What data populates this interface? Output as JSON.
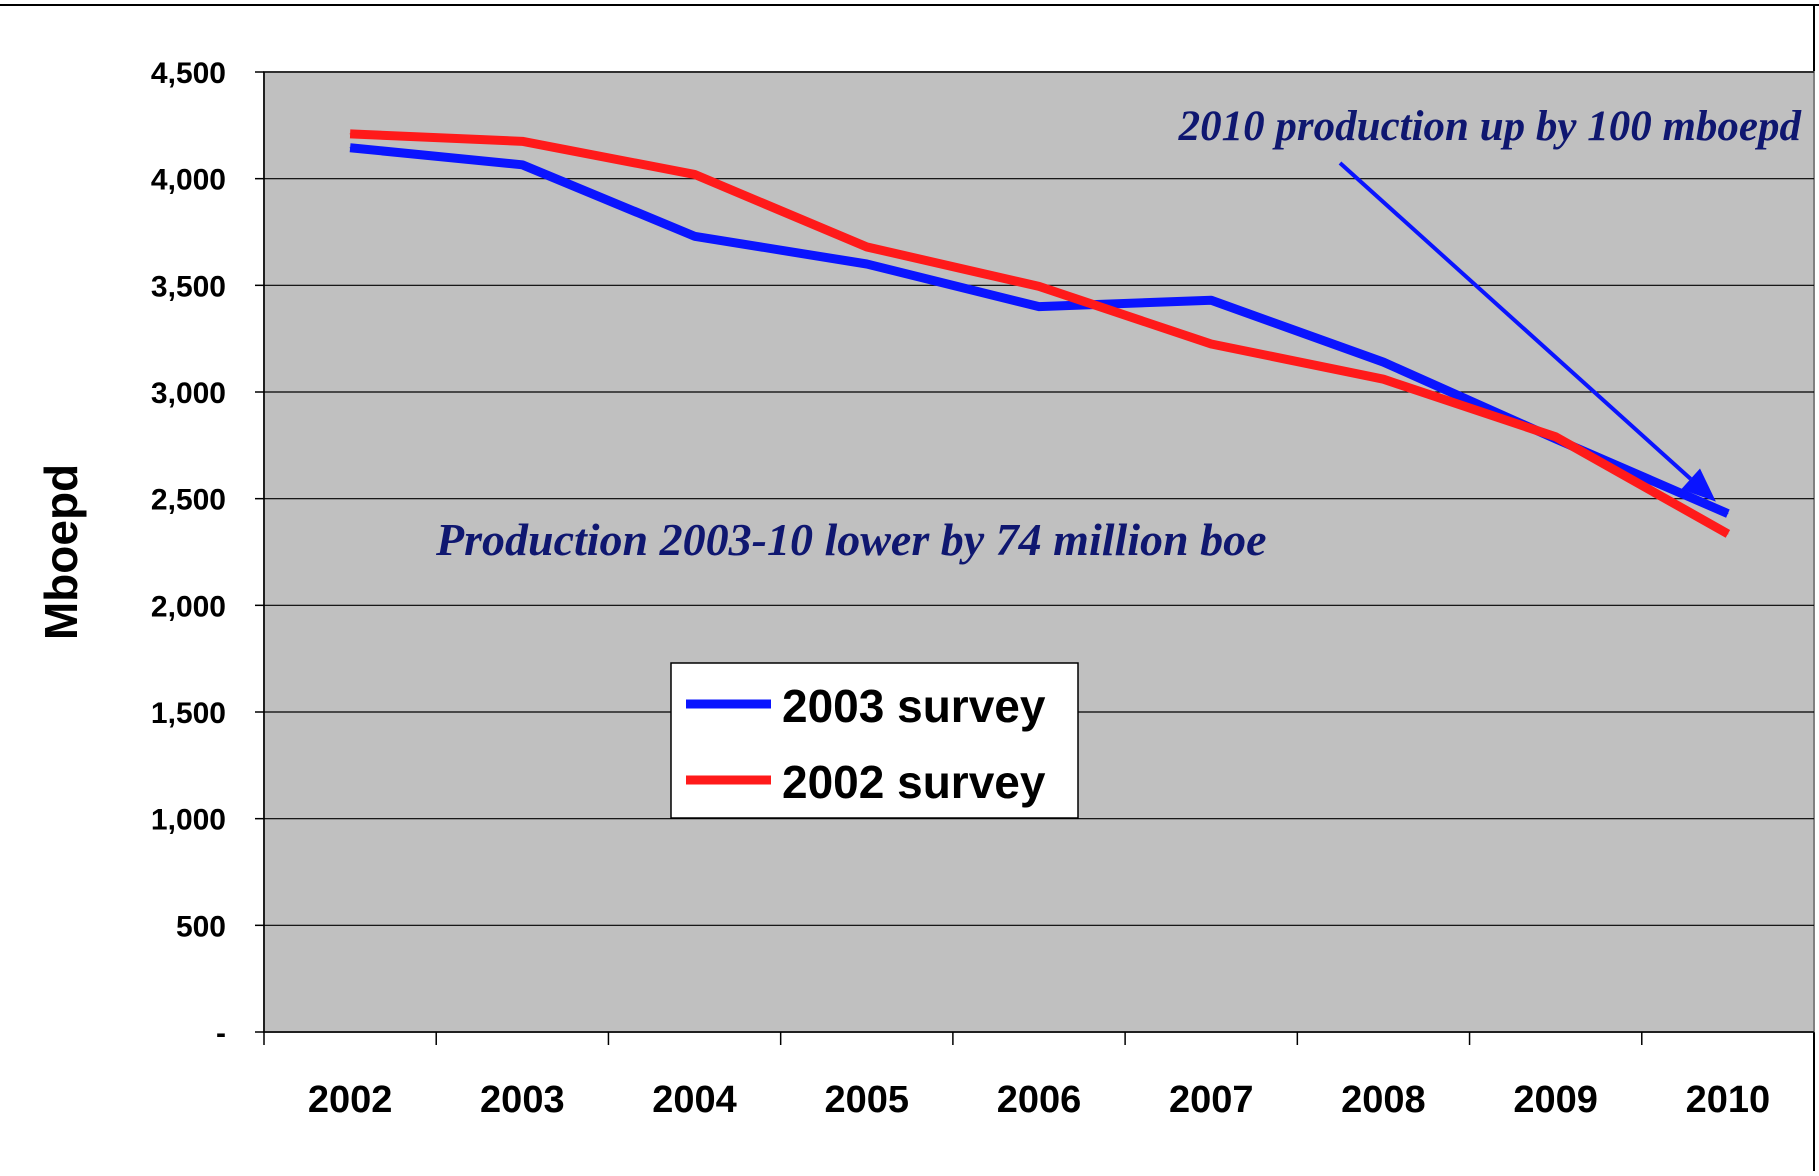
{
  "chart_data": {
    "type": "line",
    "title": "",
    "xlabel": "",
    "ylabel": "Mboepd",
    "categories": [
      "2002",
      "2003",
      "2004",
      "2005",
      "2006",
      "2007",
      "2008",
      "2009",
      "2010"
    ],
    "y_ticks": [
      "-",
      "500",
      "1,000",
      "1,500",
      "2,000",
      "2,500",
      "3,000",
      "3,500",
      "4,000",
      "4,500"
    ],
    "ylim": [
      0,
      4500
    ],
    "grid": true,
    "plot_background": "#c0c0c0",
    "legend_position": "center-left",
    "series": [
      {
        "name": "2003 survey",
        "color": "#0a14ff",
        "values": [
          4145,
          4065,
          3730,
          3600,
          3400,
          3430,
          3140,
          2780,
          2430
        ]
      },
      {
        "name": "2002 survey",
        "color": "#ff1a1a",
        "values": [
          4210,
          4175,
          4020,
          3680,
          3495,
          3225,
          3060,
          2790,
          2335
        ]
      }
    ],
    "annotations": [
      {
        "id": "anno-up",
        "text": "2010 production up by 100 mboepd"
      },
      {
        "id": "anno-lower",
        "text": "Production 2003-10 lower by 74 million boe"
      }
    ]
  }
}
